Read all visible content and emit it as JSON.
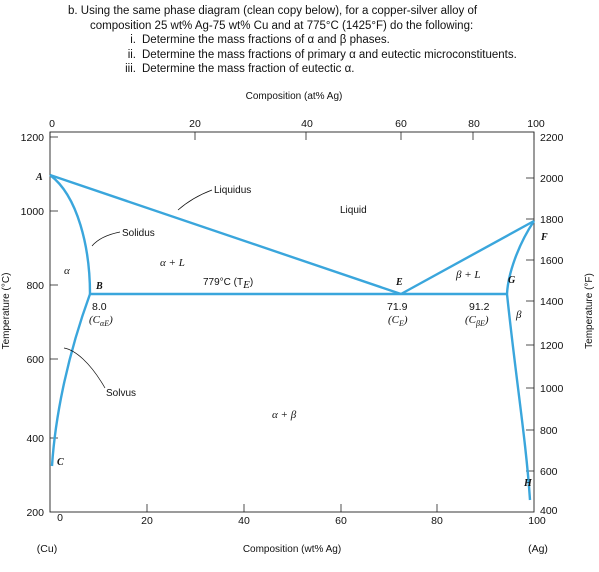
{
  "question": {
    "lines": [
      "b.  Using the same phase diagram (clean copy below), for a copper-silver alloy of",
      "composition 25 wt% Ag-75 wt% Cu and at 775°C (1425°F) do the following:"
    ],
    "items": [
      {
        "num": "i.",
        "text": "Determine the mass fractions of α and β phases."
      },
      {
        "num": "ii.",
        "text": "Determine the mass fractions of primary α and eutectic microconstituents."
      },
      {
        "num": "iii.",
        "text": "Determine the mass fraction of eutectic α."
      }
    ]
  },
  "diagram": {
    "top_axis_title": "Composition (at% Ag)",
    "top_ticks": [
      "0",
      "20",
      "40",
      "60",
      "80",
      "100"
    ],
    "bottom_axis_title": "Composition (wt% Ag)",
    "bottom_ticks": [
      "0",
      "20",
      "40",
      "60",
      "80",
      "100"
    ],
    "left_axis_title": "Temperature (°C)",
    "left_ticks": [
      "1200",
      "1000",
      "800",
      "600",
      "400",
      "200"
    ],
    "right_axis_title": "Temperature (°F)",
    "right_ticks": [
      "2200",
      "2000",
      "1800",
      "1600",
      "1400",
      "1200",
      "1000",
      "800",
      "600",
      "400"
    ],
    "end_left": "(Cu)",
    "end_right": "(Ag)",
    "phase_labels": {
      "liquid": "Liquid",
      "liquidus": "Liquidus",
      "solidus": "Solidus",
      "solvus": "Solvus",
      "alpha": "α",
      "alpha_L": "α + L",
      "beta_L": "β + L",
      "beta": "β",
      "alpha_beta": "α + β",
      "eutectic_temp": "779°C (T",
      "eutectic_temp_sub": "E",
      "eutectic_temp_close": ")"
    },
    "points": {
      "A": "A",
      "B": "B",
      "C": "C",
      "E": "E",
      "F": "F",
      "G": "G",
      "H": "H"
    },
    "compositions": {
      "b_val": "8.0",
      "b_sym": "(C",
      "b_sub": "αE",
      "e_val": "71.9",
      "e_sym": "(C",
      "e_sub": "E",
      "g_val": "91.2",
      "g_sym": "(C",
      "g_sub": "βE",
      "close": ")"
    },
    "colors": {
      "phase_boundary": "#3aa6dc",
      "frame": "#222222"
    }
  }
}
